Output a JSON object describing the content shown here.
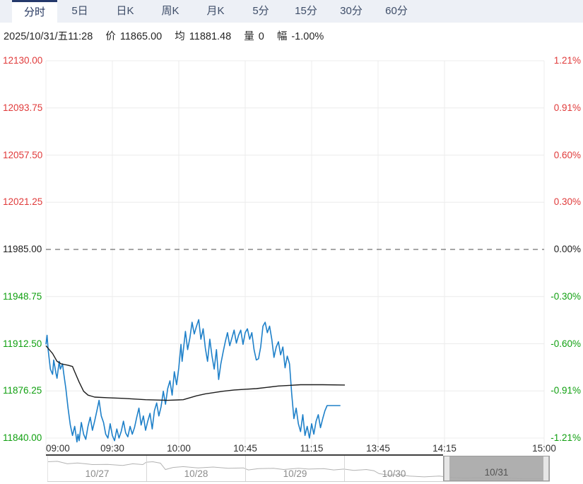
{
  "tabs": [
    {
      "label": "分时",
      "name": "tab-timeshare",
      "selected": true
    },
    {
      "label": "5日",
      "name": "tab-5day",
      "selected": false
    },
    {
      "label": "日K",
      "name": "tab-daily-k",
      "selected": false
    },
    {
      "label": "周K",
      "name": "tab-weekly-k",
      "selected": false
    },
    {
      "label": "月K",
      "name": "tab-monthly-k",
      "selected": false
    },
    {
      "label": "5分",
      "name": "tab-5min",
      "selected": false
    },
    {
      "label": "15分",
      "name": "tab-15min",
      "selected": false
    },
    {
      "label": "30分",
      "name": "tab-30min",
      "selected": false
    },
    {
      "label": "60分",
      "name": "tab-60min",
      "selected": false
    }
  ],
  "info_bar": {
    "datetime": "2025/10/31/五11:28",
    "price_label": "价",
    "price": "11865.00",
    "avg_label": "均",
    "avg": "11881.48",
    "vol_label": "量",
    "vol": "0",
    "range_label": "幅",
    "range": "-1.00%"
  },
  "chart_data": {
    "type": "line",
    "title": "",
    "xlabel": "",
    "ylabel": "",
    "ylim": [
      11840.0,
      12130.0
    ],
    "y_step": 36.25,
    "prev_close": 11985.0,
    "grid": true,
    "left_axis": [
      {
        "label": "12130.00",
        "tone": "up"
      },
      {
        "label": "12093.75",
        "tone": "up"
      },
      {
        "label": "12057.50",
        "tone": "up"
      },
      {
        "label": "12021.25",
        "tone": "up"
      },
      {
        "label": "11985.00",
        "tone": "flat"
      },
      {
        "label": "11948.75",
        "tone": "down"
      },
      {
        "label": "11912.50",
        "tone": "down"
      },
      {
        "label": "11876.25",
        "tone": "down"
      },
      {
        "label": "11840.00",
        "tone": "down"
      }
    ],
    "right_axis": [
      {
        "label": "1.21%",
        "tone": "up"
      },
      {
        "label": "0.91%",
        "tone": "up"
      },
      {
        "label": "0.60%",
        "tone": "up"
      },
      {
        "label": "0.30%",
        "tone": "up"
      },
      {
        "label": "0.00%",
        "tone": "flat"
      },
      {
        "label": "-0.30%",
        "tone": "down"
      },
      {
        "label": "-0.60%",
        "tone": "down"
      },
      {
        "label": "-0.91%",
        "tone": "down"
      },
      {
        "label": "-1.21%",
        "tone": "down"
      }
    ],
    "x_ticks": [
      {
        "label": "09:00",
        "m": 0
      },
      {
        "label": "09:30",
        "m": 30
      },
      {
        "label": "10:00",
        "m": 60
      },
      {
        "label": "10:45",
        "m": 90
      },
      {
        "label": "11:15",
        "m": 120
      },
      {
        "label": "13:45",
        "m": 150
      },
      {
        "label": "14:15",
        "m": 180
      },
      {
        "label": "15:00",
        "m": 225
      }
    ],
    "session_minutes": 225,
    "colors": {
      "grid": "#ececec",
      "zero_line": "#4d4d4d",
      "up": "#e03a3a",
      "down": "#11a011",
      "price_line": "#1e80c9",
      "avg_line": "#1c1c1c"
    },
    "series": [
      {
        "name": "price",
        "color": "#1e80c9",
        "width": 1.6,
        "points": [
          [
            0,
            11912
          ],
          [
            0.5,
            11919
          ],
          [
            1,
            11908
          ],
          [
            2,
            11893
          ],
          [
            3,
            11889
          ],
          [
            3.5,
            11900
          ],
          [
            4.5,
            11890
          ],
          [
            5,
            11886
          ],
          [
            6,
            11899
          ],
          [
            6.5,
            11893
          ],
          [
            7.5,
            11897
          ],
          [
            8,
            11890
          ],
          [
            9,
            11878
          ],
          [
            10,
            11863
          ],
          [
            11,
            11850
          ],
          [
            12,
            11842
          ],
          [
            13,
            11849
          ],
          [
            14,
            11837
          ],
          [
            14.5,
            11843
          ],
          [
            15,
            11838
          ],
          [
            16,
            11852
          ],
          [
            17,
            11843
          ],
          [
            18,
            11839
          ],
          [
            19,
            11849
          ],
          [
            20,
            11856
          ],
          [
            21,
            11846
          ],
          [
            22,
            11853
          ],
          [
            23,
            11861
          ],
          [
            24,
            11869
          ],
          [
            25,
            11857
          ],
          [
            26,
            11852
          ],
          [
            27,
            11843
          ],
          [
            28,
            11840
          ],
          [
            29,
            11851
          ],
          [
            30,
            11842
          ],
          [
            31,
            11838
          ],
          [
            32,
            11847
          ],
          [
            33,
            11840
          ],
          [
            34,
            11845
          ],
          [
            35,
            11853
          ],
          [
            36,
            11844
          ],
          [
            37,
            11841
          ],
          [
            38,
            11849
          ],
          [
            39,
            11843
          ],
          [
            40,
            11848
          ],
          [
            41,
            11856
          ],
          [
            42,
            11863
          ],
          [
            43,
            11850
          ],
          [
            44,
            11857
          ],
          [
            45,
            11846
          ],
          [
            46,
            11853
          ],
          [
            47,
            11859
          ],
          [
            48,
            11847
          ],
          [
            49,
            11861
          ],
          [
            50,
            11867
          ],
          [
            51,
            11857
          ],
          [
            52,
            11864
          ],
          [
            53,
            11876
          ],
          [
            54,
            11866
          ],
          [
            55,
            11878
          ],
          [
            56,
            11884
          ],
          [
            57,
            11873
          ],
          [
            58,
            11891
          ],
          [
            59,
            11881
          ],
          [
            60,
            11894
          ],
          [
            61,
            11912
          ],
          [
            61.5,
            11899
          ],
          [
            63,
            11922
          ],
          [
            64,
            11908
          ],
          [
            65,
            11917
          ],
          [
            66,
            11929
          ],
          [
            67,
            11920
          ],
          [
            68,
            11926
          ],
          [
            69,
            11931
          ],
          [
            70,
            11916
          ],
          [
            71,
            11924
          ],
          [
            72,
            11909
          ],
          [
            73,
            11899
          ],
          [
            74,
            11916
          ],
          [
            75,
            11903
          ],
          [
            76,
            11893
          ],
          [
            77,
            11908
          ],
          [
            78,
            11885
          ],
          [
            79,
            11897
          ],
          [
            80,
            11906
          ],
          [
            81,
            11914
          ],
          [
            82,
            11921
          ],
          [
            83,
            11911
          ],
          [
            84,
            11917
          ],
          [
            85,
            11923
          ],
          [
            86,
            11913
          ],
          [
            87,
            11919
          ],
          [
            88,
            11923
          ],
          [
            89,
            11912
          ],
          [
            90,
            11921
          ],
          [
            91,
            11924
          ],
          [
            92,
            11916
          ],
          [
            93,
            11921
          ],
          [
            94,
            11908
          ],
          [
            95,
            11900
          ],
          [
            96,
            11901
          ],
          [
            97,
            11910
          ],
          [
            98,
            11926
          ],
          [
            99,
            11929
          ],
          [
            100,
            11921
          ],
          [
            101,
            11926
          ],
          [
            102,
            11916
          ],
          [
            103,
            11902
          ],
          [
            104,
            11910
          ],
          [
            105,
            11914
          ],
          [
            106,
            11904
          ],
          [
            107,
            11910
          ],
          [
            108,
            11894
          ],
          [
            109,
            11903
          ],
          [
            110,
            11897
          ],
          [
            111,
            11874
          ],
          [
            112,
            11855
          ],
          [
            113,
            11863
          ],
          [
            114,
            11851
          ],
          [
            115,
            11845
          ],
          [
            116,
            11858
          ],
          [
            117,
            11842
          ],
          [
            118,
            11849
          ],
          [
            119,
            11840
          ],
          [
            120,
            11851
          ],
          [
            121,
            11843
          ],
          [
            122,
            11853
          ],
          [
            123,
            11858
          ],
          [
            124,
            11848
          ],
          [
            125,
            11855
          ],
          [
            126,
            11861
          ],
          [
            127,
            11865
          ],
          [
            133,
            11865
          ]
        ]
      },
      {
        "name": "average",
        "color": "#1c1c1c",
        "width": 1.4,
        "points": [
          [
            0,
            11911
          ],
          [
            1,
            11909
          ],
          [
            3,
            11905
          ],
          [
            5,
            11899
          ],
          [
            7,
            11897
          ],
          [
            10,
            11896
          ],
          [
            12,
            11895
          ],
          [
            13,
            11891
          ],
          [
            15,
            11883
          ],
          [
            17,
            11876
          ],
          [
            19,
            11873
          ],
          [
            22,
            11871.5
          ],
          [
            28,
            11871
          ],
          [
            35,
            11870.5
          ],
          [
            45,
            11869.5
          ],
          [
            55,
            11869
          ],
          [
            62,
            11869.5
          ],
          [
            65,
            11871
          ],
          [
            68,
            11872.5
          ],
          [
            72,
            11874
          ],
          [
            76,
            11875
          ],
          [
            80,
            11876
          ],
          [
            85,
            11877
          ],
          [
            90,
            11877.5
          ],
          [
            95,
            11878
          ],
          [
            100,
            11879
          ],
          [
            105,
            11880
          ],
          [
            110,
            11880.5
          ],
          [
            115,
            11881
          ],
          [
            125,
            11881
          ],
          [
            135,
            11880.8
          ]
        ]
      }
    ]
  },
  "navigator": {
    "days": [
      {
        "label": "10/27",
        "selected": false
      },
      {
        "label": "10/28",
        "selected": false
      },
      {
        "label": "10/29",
        "selected": false
      },
      {
        "label": "10/30",
        "selected": false
      },
      {
        "label": "10/31",
        "selected": true
      }
    ],
    "spark_color": "#b3b3b3",
    "spark": [
      [
        0,
        0.12
      ],
      [
        0.02,
        0.1
      ],
      [
        0.04,
        0.22
      ],
      [
        0.06,
        0.18
      ],
      [
        0.09,
        0.26
      ],
      [
        0.12,
        0.25
      ],
      [
        0.15,
        0.3
      ],
      [
        0.17,
        0.22
      ],
      [
        0.19,
        0.26
      ],
      [
        0.197,
        0.14
      ],
      [
        0.21,
        0.12
      ],
      [
        0.225,
        0.19
      ],
      [
        0.235,
        0.5
      ],
      [
        0.25,
        0.4
      ],
      [
        0.27,
        0.36
      ],
      [
        0.3,
        0.42
      ],
      [
        0.33,
        0.38
      ],
      [
        0.36,
        0.44
      ],
      [
        0.39,
        0.42
      ],
      [
        0.4,
        0.52
      ],
      [
        0.42,
        0.46
      ],
      [
        0.45,
        0.44
      ],
      [
        0.47,
        0.5
      ],
      [
        0.5,
        0.44
      ],
      [
        0.52,
        0.48
      ],
      [
        0.55,
        0.46
      ],
      [
        0.57,
        0.52
      ],
      [
        0.59,
        0.48
      ],
      [
        0.61,
        0.54
      ],
      [
        0.635,
        0.5
      ],
      [
        0.65,
        0.56
      ],
      [
        0.66,
        0.7
      ],
      [
        0.68,
        0.78
      ],
      [
        0.7,
        0.74
      ],
      [
        0.72,
        0.82
      ],
      [
        0.75,
        0.86
      ],
      [
        0.78,
        0.82
      ],
      [
        0.8,
        0.88
      ],
      [
        0.83,
        0.92
      ],
      [
        0.86,
        0.9
      ],
      [
        0.89,
        0.94
      ],
      [
        0.92,
        0.92
      ],
      [
        0.95,
        0.96
      ],
      [
        1.0,
        0.95
      ]
    ]
  }
}
